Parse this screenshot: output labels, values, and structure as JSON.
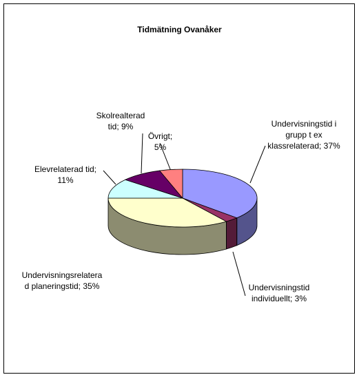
{
  "chart_data": {
    "type": "pie3d",
    "title": "Tidmätning Ovanåker",
    "values": [
      37,
      3,
      35,
      11,
      9,
      5
    ],
    "value_labels": [
      "Undervisningstid i grupp t ex klassrelaterad; 37%",
      "Undervisningstid individuellt; 3%",
      "Undervisningsrelaterad planeringstid; 35%",
      "Elevrelaterad tid; 11%",
      "Skolrealterad tid; 9%",
      "Övrigt; 5%"
    ],
    "colors": [
      "#9999ff",
      "#993366",
      "#ffffcc",
      "#ccffff",
      "#660066",
      "#ff8080"
    ]
  }
}
